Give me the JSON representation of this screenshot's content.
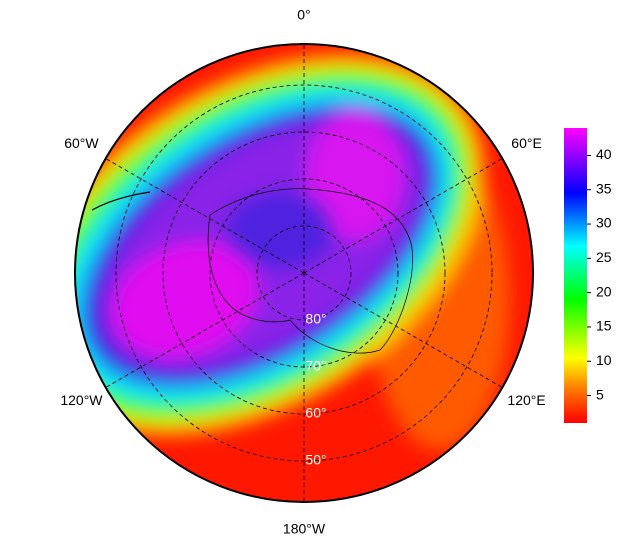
{
  "map": {
    "longitudes": [
      {
        "value": 0,
        "label": "0°"
      },
      {
        "value": 60,
        "label": "60°E"
      },
      {
        "value": 120,
        "label": "120°E"
      },
      {
        "value": 180,
        "label": "180°W"
      },
      {
        "value": -120,
        "label": "120°W"
      },
      {
        "value": -60,
        "label": "60°W"
      }
    ],
    "latitudes": [
      {
        "value": 80,
        "label": "80°"
      },
      {
        "value": 70,
        "label": "70°"
      },
      {
        "value": 60,
        "label": "60°"
      },
      {
        "value": 50,
        "label": "50°"
      }
    ]
  },
  "colorbar": {
    "lim": [
      1,
      44
    ],
    "ticks": [
      5,
      10,
      15,
      20,
      25,
      30,
      35,
      40
    ]
  }
}
